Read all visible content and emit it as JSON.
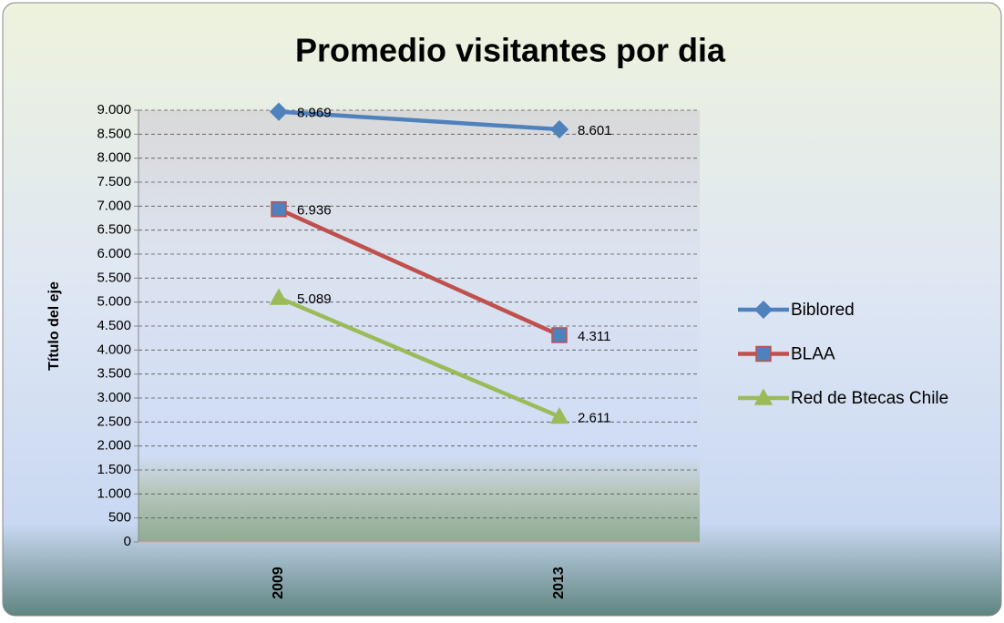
{
  "chart_data": {
    "type": "line",
    "title": "Promedio visitantes por dia",
    "y_label": "Título del eje",
    "categories": [
      "2009",
      "2013"
    ],
    "series": [
      {
        "name": "Biblored",
        "color": "#4f81bd",
        "marker": "diamond",
        "marker_fill": "#4f81bd",
        "values": [
          8969,
          8601
        ],
        "value_labels": [
          "8.969",
          "8.601"
        ]
      },
      {
        "name": "BLAA",
        "color": "#c0504d",
        "marker": "square",
        "marker_fill": "#4f81bd",
        "values": [
          6936,
          4311
        ],
        "value_labels": [
          "6.936",
          "4.311"
        ]
      },
      {
        "name": "Red de Btecas Chile",
        "color": "#9bbb59",
        "marker": "triangle",
        "marker_fill": "#9bbb59",
        "values": [
          5089,
          2611
        ],
        "value_labels": [
          "5.089",
          "2.611"
        ]
      }
    ],
    "ylim": [
      0,
      9000
    ],
    "yticks": [
      0,
      500,
      {
        "value": 1000,
        "label": "1.000"
      },
      {
        "value": 1500,
        "label": "1.500"
      },
      {
        "value": 2000,
        "label": "2.000"
      },
      {
        "value": 2500,
        "label": "2.500"
      },
      {
        "value": 3000,
        "label": "3.000"
      },
      {
        "value": 3500,
        "label": "3.500"
      },
      {
        "value": 4000,
        "label": "4.000"
      },
      {
        "value": 4500,
        "label": "4.500"
      },
      {
        "value": 5000,
        "label": "5.000"
      },
      {
        "value": 5500,
        "label": "5.500"
      },
      {
        "value": 6000,
        "label": "6.000"
      },
      {
        "value": 6500,
        "label": "6.500"
      },
      {
        "value": 7000,
        "label": "7.000"
      },
      {
        "value": 7500,
        "label": "7.500"
      },
      {
        "value": 8000,
        "label": "8.000"
      },
      {
        "value": 8500,
        "label": "8.500"
      },
      {
        "value": 9000,
        "label": "9.000"
      }
    ],
    "grid": true,
    "grid_style": "dashed",
    "legend": "right"
  }
}
